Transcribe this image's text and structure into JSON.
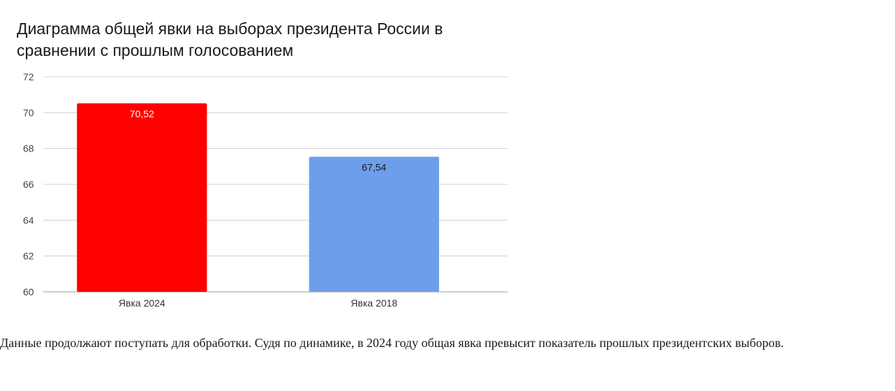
{
  "chart_data": {
    "type": "bar",
    "title": "Диаграмма общей явки на выборах президента России в сравнении с прошлым голосованием",
    "categories": [
      "Явка 2024",
      "Явка 2018"
    ],
    "values": [
      70.52,
      67.54
    ],
    "value_labels": [
      "70,52",
      "67,54"
    ],
    "bar_colors": [
      "#ff0000",
      "#6d9eeb"
    ],
    "value_label_colors": [
      "#ffffff",
      "#1a1a1a"
    ],
    "xlabel": "",
    "ylabel": "",
    "ylim": [
      60,
      72
    ],
    "yticks": [
      60,
      62,
      64,
      66,
      68,
      70,
      72
    ],
    "grid": true,
    "legend": "none"
  },
  "article": {
    "paragraph": "Данные продолжают поступать для обработки. Судя по динамике, в 2024 году общая явка превысит показатель прошлых президентских выборов."
  }
}
